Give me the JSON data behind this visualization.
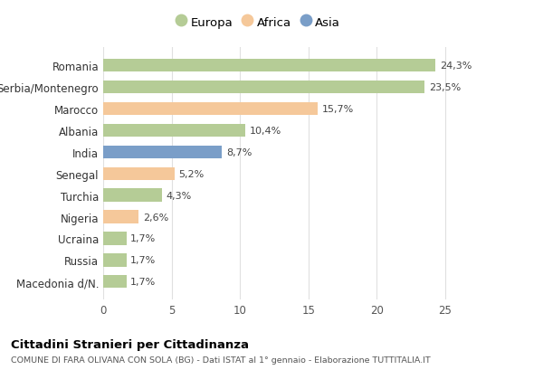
{
  "countries": [
    "Macedonia d/N.",
    "Russia",
    "Ucraina",
    "Nigeria",
    "Turchia",
    "Senegal",
    "India",
    "Albania",
    "Marocco",
    "Serbia/Montenegro",
    "Romania"
  ],
  "values": [
    1.7,
    1.7,
    1.7,
    2.6,
    4.3,
    5.2,
    8.7,
    10.4,
    15.7,
    23.5,
    24.3
  ],
  "labels": [
    "1,7%",
    "1,7%",
    "1,7%",
    "2,6%",
    "4,3%",
    "5,2%",
    "8,7%",
    "10,4%",
    "15,7%",
    "23,5%",
    "24,3%"
  ],
  "colors": [
    "#b5cc96",
    "#b5cc96",
    "#b5cc96",
    "#f5c89a",
    "#b5cc96",
    "#f5c89a",
    "#7a9ec8",
    "#b5cc96",
    "#f5c89a",
    "#b5cc96",
    "#b5cc96"
  ],
  "legend_labels": [
    "Europa",
    "Africa",
    "Asia"
  ],
  "legend_colors": [
    "#b5cc96",
    "#f5c89a",
    "#7a9ec8"
  ],
  "title": "Cittadini Stranieri per Cittadinanza",
  "subtitle": "COMUNE DI FARA OLIVANA CON SOLA (BG) - Dati ISTAT al 1° gennaio - Elaborazione TUTTITALIA.IT",
  "xlim": [
    0,
    27
  ],
  "xticks": [
    0,
    5,
    10,
    15,
    20,
    25
  ],
  "bg_color": "#ffffff",
  "plot_bg_color": "#ffffff",
  "grid_color": "#e0e0e0"
}
